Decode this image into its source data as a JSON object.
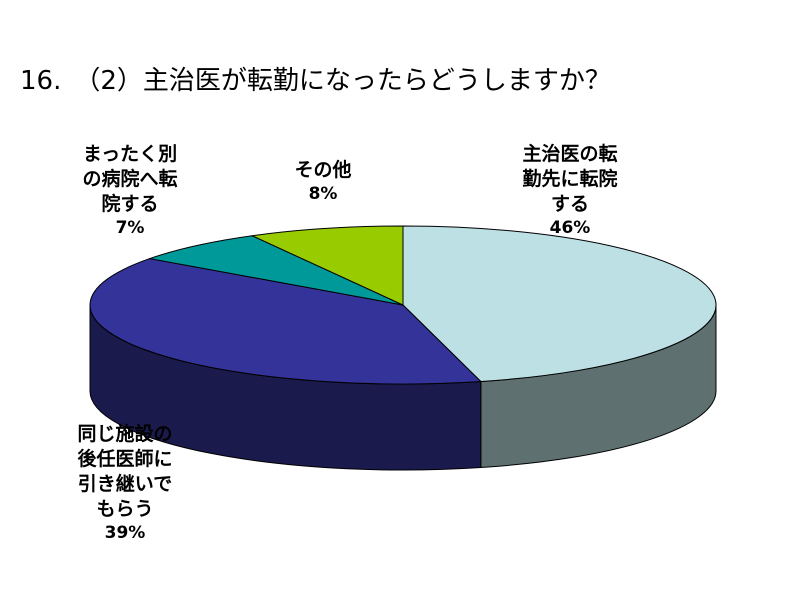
{
  "chart_data": {
    "type": "pie",
    "title": "16.　（2）主治医が転勤になったらどうしますか？",
    "slices": [
      {
        "label_lines": [
          "主治医の転",
          "勤先に転院",
          "する"
        ],
        "value": 46,
        "pct_label": "46%",
        "color": "#bde0e4",
        "side_color": "#5f7070"
      },
      {
        "label_lines": [
          "同じ施設の",
          "後任医師に",
          "引き継いで",
          "もらう"
        ],
        "value": 39,
        "pct_label": "39%",
        "color": "#333399",
        "side_color": "#1a1a4d"
      },
      {
        "label_lines": [
          "まったく別",
          "の病院へ転",
          "院する"
        ],
        "value": 7,
        "pct_label": "7%",
        "color": "#009999",
        "side_color": "#004d4d"
      },
      {
        "label_lines": [
          "その他"
        ],
        "value": 8,
        "pct_label": "8%",
        "color": "#99cc00",
        "side_color": "#4d6600"
      }
    ]
  }
}
